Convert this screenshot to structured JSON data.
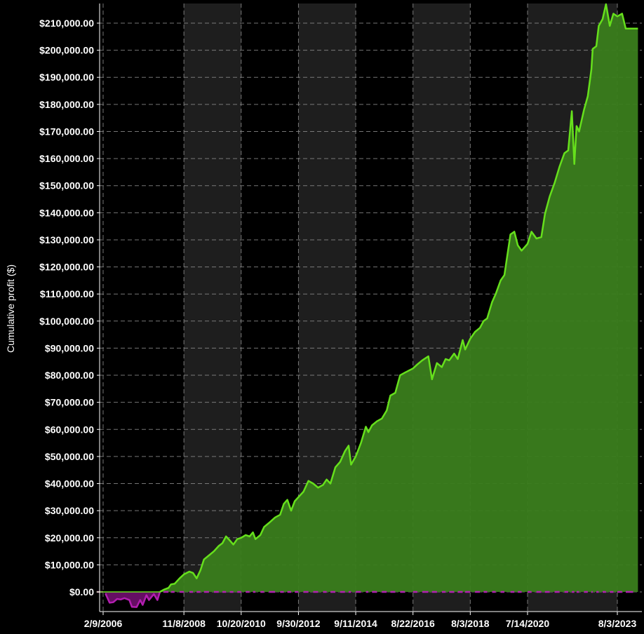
{
  "chart_data": {
    "type": "area",
    "title": "",
    "xlabel": "",
    "ylabel": "Cumulative profit ($)",
    "grid": true,
    "ylim": [
      0,
      212000
    ],
    "y_ticks": [
      {
        "value": 0,
        "label": "$0.00"
      },
      {
        "value": 10000,
        "label": "$10,000.00"
      },
      {
        "value": 20000,
        "label": "$20,000.00"
      },
      {
        "value": 30000,
        "label": "$30,000.00"
      },
      {
        "value": 40000,
        "label": "$40,000.00"
      },
      {
        "value": 50000,
        "label": "$50,000.00"
      },
      {
        "value": 60000,
        "label": "$60,000.00"
      },
      {
        "value": 70000,
        "label": "$70,000.00"
      },
      {
        "value": 80000,
        "label": "$80,000.00"
      },
      {
        "value": 90000,
        "label": "$90,000.00"
      },
      {
        "value": 100000,
        "label": "$100,000.00"
      },
      {
        "value": 110000,
        "label": "$110,000.00"
      },
      {
        "value": 120000,
        "label": "$120,000.00"
      },
      {
        "value": 130000,
        "label": "$130,000.00"
      },
      {
        "value": 140000,
        "label": "$140,000.00"
      },
      {
        "value": 150000,
        "label": "$150,000.00"
      },
      {
        "value": 160000,
        "label": "$160,000.00"
      },
      {
        "value": 170000,
        "label": "$170,000.00"
      },
      {
        "value": 180000,
        "label": "$180,000.00"
      },
      {
        "value": 190000,
        "label": "$190,000.00"
      },
      {
        "value": 200000,
        "label": "$200,000.00"
      },
      {
        "value": 210000,
        "label": "$210,000.00"
      }
    ],
    "x_ticks": [
      {
        "value": "2006-02-09",
        "label": "2/9/2006"
      },
      {
        "value": "2008-11-08",
        "label": "11/8/2008"
      },
      {
        "value": "2010-10-20",
        "label": "10/20/2010"
      },
      {
        "value": "2012-09-30",
        "label": "9/30/2012"
      },
      {
        "value": "2014-09-11",
        "label": "9/11/2014"
      },
      {
        "value": "2016-08-22",
        "label": "8/22/2016"
      },
      {
        "value": "2018-08-03",
        "label": "8/3/2018"
      },
      {
        "value": "2020-07-14",
        "label": "7/14/2020"
      },
      {
        "value": "2023-08-03",
        "label": "8/3/2023"
      }
    ],
    "xlim": [
      "2005-11-15",
      "2024-04-15"
    ],
    "shaded_bands": [
      [
        "2008-11-08",
        "2010-10-20"
      ],
      [
        "2012-09-30",
        "2014-09-11"
      ],
      [
        "2016-08-22",
        "2018-08-03"
      ],
      [
        "2020-07-14",
        "2023-08-03"
      ]
    ],
    "colors": {
      "background": "#000000",
      "band": "#1e1e1e",
      "grid": "#8a8a8a",
      "positive_line": "#66e01c",
      "positive_fill": "#3a7d1c",
      "negative_line": "#b21fb0",
      "negative_fill": "#6a0f68"
    },
    "series": [
      {
        "values": [
          [
            "2005-11-20",
            0
          ],
          [
            "2006-02-09",
            0
          ],
          [
            "2006-03-10",
            -600
          ],
          [
            "2006-05-01",
            -4000
          ],
          [
            "2006-06-15",
            -3800
          ],
          [
            "2006-08-01",
            -2600
          ],
          [
            "2006-09-15",
            -2800
          ],
          [
            "2006-11-01",
            -2300
          ],
          [
            "2007-01-01",
            -3000
          ],
          [
            "2007-02-01",
            -5500
          ],
          [
            "2007-04-01",
            -5600
          ],
          [
            "2007-05-15",
            -3000
          ],
          [
            "2007-06-15",
            -4800
          ],
          [
            "2007-08-01",
            -1200
          ],
          [
            "2007-09-01",
            -3000
          ],
          [
            "2007-11-01",
            -800
          ],
          [
            "2007-12-15",
            -3000
          ],
          [
            "2008-01-15",
            0
          ],
          [
            "2008-03-01",
            800
          ],
          [
            "2008-05-01",
            1500
          ],
          [
            "2008-06-01",
            2800
          ],
          [
            "2008-07-15",
            3000
          ],
          [
            "2008-09-15",
            5000
          ],
          [
            "2008-11-08",
            6500
          ],
          [
            "2009-01-15",
            7500
          ],
          [
            "2009-03-01",
            7000
          ],
          [
            "2009-04-15",
            5000
          ],
          [
            "2009-06-01",
            8000
          ],
          [
            "2009-07-15",
            12000
          ],
          [
            "2009-09-15",
            13500
          ],
          [
            "2009-11-15",
            15000
          ],
          [
            "2010-01-15",
            17000
          ],
          [
            "2010-03-01",
            18000
          ],
          [
            "2010-04-15",
            20500
          ],
          [
            "2010-06-01",
            19000
          ],
          [
            "2010-07-15",
            17500
          ],
          [
            "2010-09-01",
            19500
          ],
          [
            "2010-10-20",
            20000
          ],
          [
            "2010-12-15",
            21000
          ],
          [
            "2011-02-01",
            20500
          ],
          [
            "2011-03-15",
            22000
          ],
          [
            "2011-04-15",
            19500
          ],
          [
            "2011-06-15",
            21000
          ],
          [
            "2011-08-01",
            24000
          ],
          [
            "2011-10-01",
            25500
          ],
          [
            "2011-12-15",
            27500
          ],
          [
            "2012-02-15",
            28500
          ],
          [
            "2012-04-01",
            32500
          ],
          [
            "2012-05-15",
            34000
          ],
          [
            "2012-07-01",
            30000
          ],
          [
            "2012-08-15",
            33500
          ],
          [
            "2012-09-30",
            35000
          ],
          [
            "2012-12-01",
            37000
          ],
          [
            "2013-02-01",
            41000
          ],
          [
            "2013-04-01",
            40000
          ],
          [
            "2013-06-01",
            38500
          ],
          [
            "2013-08-01",
            39500
          ],
          [
            "2013-09-15",
            41500
          ],
          [
            "2013-11-01",
            40000
          ],
          [
            "2014-01-01",
            46000
          ],
          [
            "2014-03-01",
            48000
          ],
          [
            "2014-05-01",
            52000
          ],
          [
            "2014-06-15",
            54000
          ],
          [
            "2014-07-15",
            47000
          ],
          [
            "2014-09-11",
            50000
          ],
          [
            "2014-11-15",
            55000
          ],
          [
            "2015-01-15",
            61000
          ],
          [
            "2015-02-15",
            59000
          ],
          [
            "2015-04-01",
            61500
          ],
          [
            "2015-06-01",
            63000
          ],
          [
            "2015-08-01",
            64000
          ],
          [
            "2015-10-01",
            67000
          ],
          [
            "2015-11-15",
            72500
          ],
          [
            "2016-01-15",
            73500
          ],
          [
            "2016-03-15",
            80000
          ],
          [
            "2016-05-15",
            81000
          ],
          [
            "2016-08-22",
            82500
          ],
          [
            "2016-10-15",
            84000
          ],
          [
            "2016-12-15",
            85500
          ],
          [
            "2017-03-01",
            87000
          ],
          [
            "2017-04-15",
            78500
          ],
          [
            "2017-06-15",
            84500
          ],
          [
            "2017-08-15",
            83000
          ],
          [
            "2017-10-01",
            86000
          ],
          [
            "2017-11-15",
            85500
          ],
          [
            "2018-01-15",
            88000
          ],
          [
            "2018-03-01",
            86000
          ],
          [
            "2018-05-01",
            93000
          ],
          [
            "2018-06-01",
            89500
          ],
          [
            "2018-08-03",
            93500
          ],
          [
            "2018-10-01",
            96000
          ],
          [
            "2018-12-01",
            97500
          ],
          [
            "2019-01-15",
            100000
          ],
          [
            "2019-03-01",
            101000
          ],
          [
            "2019-05-01",
            107000
          ],
          [
            "2019-06-15",
            110000
          ],
          [
            "2019-08-15",
            115000
          ],
          [
            "2019-10-01",
            117000
          ],
          [
            "2019-12-15",
            132000
          ],
          [
            "2020-02-01",
            133000
          ],
          [
            "2020-03-15",
            128000
          ],
          [
            "2020-05-01",
            126000
          ],
          [
            "2020-07-14",
            128500
          ],
          [
            "2020-09-01",
            133000
          ],
          [
            "2020-11-01",
            130500
          ],
          [
            "2021-01-01",
            131000
          ],
          [
            "2021-02-15",
            139500
          ],
          [
            "2021-04-15",
            146000
          ],
          [
            "2021-06-15",
            151000
          ],
          [
            "2021-08-15",
            157000
          ],
          [
            "2021-10-15",
            162000
          ],
          [
            "2021-12-01",
            163000
          ],
          [
            "2022-01-15",
            177500
          ],
          [
            "2022-02-15",
            158000
          ],
          [
            "2022-03-15",
            172000
          ],
          [
            "2022-04-15",
            170000
          ],
          [
            "2022-06-15",
            178000
          ],
          [
            "2022-08-01",
            183000
          ],
          [
            "2022-09-15",
            193000
          ],
          [
            "2022-10-01",
            200500
          ],
          [
            "2022-11-15",
            201500
          ],
          [
            "2022-12-15",
            209000
          ],
          [
            "2023-02-01",
            211500
          ],
          [
            "2023-03-15",
            217000
          ],
          [
            "2023-05-01",
            209000
          ],
          [
            "2023-06-15",
            213500
          ],
          [
            "2023-08-03",
            212500
          ],
          [
            "2023-10-01",
            213500
          ],
          [
            "2023-11-15",
            208000
          ],
          [
            "2024-02-15",
            208000
          ],
          [
            "2024-04-15",
            208000
          ]
        ]
      }
    ]
  }
}
